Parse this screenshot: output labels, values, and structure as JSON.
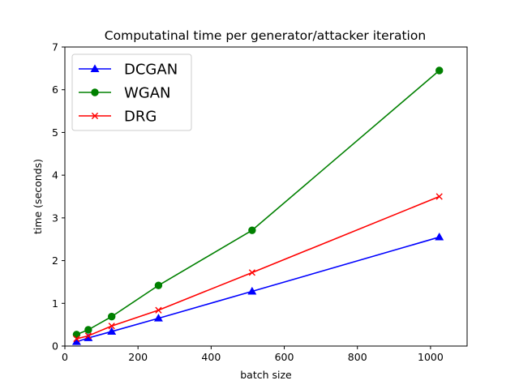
{
  "chart_data": {
    "type": "line",
    "title": "Computatinal time per generator/attacker iteration",
    "xlabel": "batch size",
    "ylabel": "time (seconds)",
    "xlim": [
      0,
      1100
    ],
    "ylim": [
      0,
      7
    ],
    "xticks": [
      0,
      200,
      400,
      600,
      800,
      1000
    ],
    "yticks": [
      0,
      1,
      2,
      3,
      4,
      5,
      6,
      7
    ],
    "grid": false,
    "legend_position": "top-left",
    "x": [
      32,
      64,
      128,
      256,
      512,
      1024
    ],
    "series": [
      {
        "name": "DCGAN",
        "color": "#0000ff",
        "marker": "triangle",
        "values": [
          0.1,
          0.19,
          0.34,
          0.65,
          1.28,
          2.55
        ]
      },
      {
        "name": "WGAN",
        "color": "#008000",
        "marker": "circle",
        "values": [
          0.27,
          0.38,
          0.69,
          1.42,
          2.71,
          6.45
        ]
      },
      {
        "name": "DRG",
        "color": "#ff0000",
        "marker": "x",
        "values": [
          0.17,
          0.24,
          0.47,
          0.84,
          1.72,
          3.5
        ]
      }
    ]
  }
}
